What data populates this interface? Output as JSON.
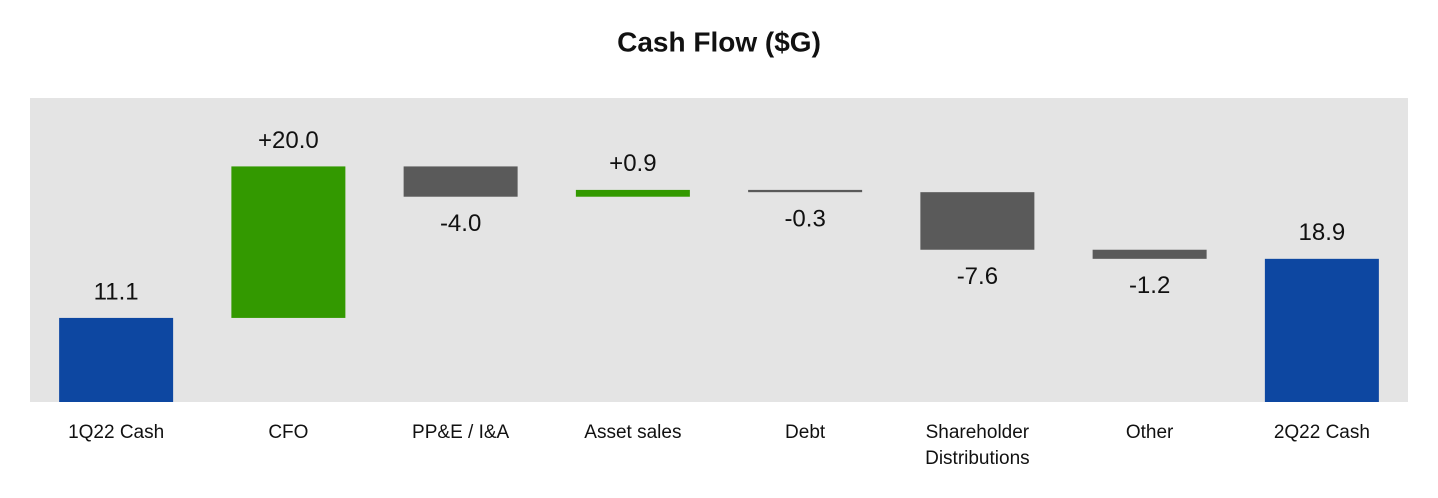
{
  "chart_data": {
    "type": "waterfall",
    "title": "Cash Flow ($G)",
    "categories": [
      "1Q22 Cash",
      "CFO",
      "PP&E / I&A",
      "Asset sales",
      "Debt",
      "Shareholder Distributions",
      "Other",
      "2Q22 Cash"
    ],
    "measure": [
      "absolute",
      "relative",
      "relative",
      "relative",
      "relative",
      "relative",
      "relative",
      "total"
    ],
    "values": [
      11.1,
      20.0,
      -4.0,
      0.9,
      -0.3,
      -7.6,
      -1.2,
      18.9
    ],
    "value_labels": [
      "11.1",
      "+20.0",
      "-4.0",
      "+0.9",
      "-0.3",
      "-7.6",
      "-1.2",
      "18.9"
    ],
    "colors": {
      "total": "#0d47a1",
      "increase": "#339900",
      "decrease": "#5a5a5a"
    },
    "ylim": [
      0,
      40
    ]
  }
}
